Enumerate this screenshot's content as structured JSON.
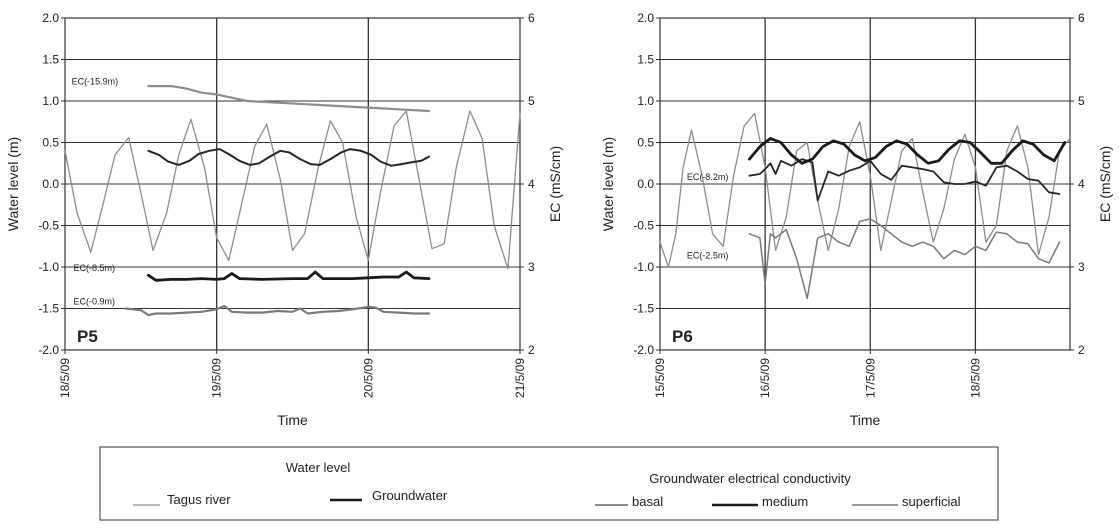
{
  "chart_data": [
    {
      "type": "line",
      "panel_label": "P5",
      "xlabel": "Time",
      "ylabel": "Water level (m)",
      "y2label": "EC (mS/cm)",
      "xlim": [
        0,
        3
      ],
      "ylim": [
        -2.0,
        2.0
      ],
      "y2lim": [
        2,
        6
      ],
      "grid": true,
      "x_ticks": [
        {
          "pos": 0,
          "label": "18/5/09"
        },
        {
          "pos": 1,
          "label": "19/5/09"
        },
        {
          "pos": 2,
          "label": "20/5/09"
        },
        {
          "pos": 3,
          "label": "21/5/09"
        }
      ],
      "y_ticks": [
        "2.0",
        "1.5",
        "1.0",
        "0.5",
        "0.0",
        "-0.5",
        "-1.0",
        "-1.5",
        "-2.0"
      ],
      "y2_ticks": [
        "6",
        "5",
        "4",
        "3",
        "2"
      ],
      "annotations": [
        {
          "text": "EC(-15.9m)",
          "x": 0.35,
          "y": 1.2
        },
        {
          "text": "EC(-8.5m)",
          "x": 0.33,
          "y": -1.05
        },
        {
          "text": "EC(-0.9m)",
          "x": 0.33,
          "y": -1.45
        }
      ],
      "series": [
        {
          "name": "Tagus river",
          "axis": "left",
          "color": "#8c8c8c",
          "width": 1.3,
          "x": [
            0.0,
            0.08,
            0.17,
            0.25,
            0.33,
            0.42,
            0.5,
            0.58,
            0.67,
            0.75,
            0.83,
            0.92,
            1.0,
            1.08,
            1.17,
            1.25,
            1.33,
            1.42,
            1.5,
            1.58,
            1.67,
            1.75,
            1.83,
            1.92,
            2.0,
            2.08,
            2.17,
            2.25,
            2.33,
            2.42,
            2.5,
            2.58,
            2.67,
            2.75,
            2.83,
            2.92,
            3.0
          ],
          "y": [
            0.4,
            -0.35,
            -0.82,
            -0.25,
            0.35,
            0.56,
            -0.1,
            -0.8,
            -0.35,
            0.35,
            0.78,
            0.2,
            -0.65,
            -0.92,
            -0.2,
            0.45,
            0.72,
            0.05,
            -0.8,
            -0.6,
            0.2,
            0.76,
            0.5,
            -0.4,
            -0.92,
            -0.1,
            0.7,
            0.88,
            0.1,
            -0.78,
            -0.72,
            0.2,
            0.88,
            0.55,
            -0.5,
            -1.02,
            0.85
          ]
        },
        {
          "name": "basal",
          "axis": "right",
          "color": "#8c8c8c",
          "width": 2.2,
          "x": [
            0.55,
            0.7,
            0.8,
            0.9,
            1.0,
            1.1,
            1.2,
            1.4,
            1.6,
            1.8,
            2.0,
            2.2,
            2.4
          ],
          "y2": [
            5.18,
            5.18,
            5.15,
            5.1,
            5.08,
            5.04,
            5.0,
            4.98,
            4.96,
            4.94,
            4.92,
            4.9,
            4.88
          ]
        },
        {
          "name": "Groundwater",
          "axis": "left",
          "color": "#262626",
          "width": 2.0,
          "x": [
            0.55,
            0.62,
            0.68,
            0.75,
            0.82,
            0.88,
            0.95,
            1.02,
            1.08,
            1.15,
            1.22,
            1.28,
            1.35,
            1.42,
            1.48,
            1.55,
            1.62,
            1.68,
            1.75,
            1.82,
            1.88,
            1.95,
            2.02,
            2.08,
            2.15,
            2.22,
            2.28,
            2.35,
            2.4
          ],
          "y": [
            0.4,
            0.35,
            0.27,
            0.23,
            0.28,
            0.36,
            0.4,
            0.42,
            0.36,
            0.28,
            0.23,
            0.25,
            0.33,
            0.4,
            0.38,
            0.3,
            0.24,
            0.23,
            0.3,
            0.38,
            0.42,
            0.4,
            0.35,
            0.27,
            0.22,
            0.24,
            0.26,
            0.28,
            0.33
          ]
        },
        {
          "name": "medium",
          "axis": "right",
          "color": "#1a1a1a",
          "width": 2.8,
          "x": [
            0.55,
            0.6,
            0.7,
            0.8,
            0.9,
            1.0,
            1.05,
            1.1,
            1.15,
            1.3,
            1.5,
            1.6,
            1.65,
            1.7,
            1.9,
            2.0,
            2.1,
            2.2,
            2.25,
            2.3,
            2.4
          ],
          "y2": [
            2.9,
            2.84,
            2.85,
            2.85,
            2.86,
            2.85,
            2.86,
            2.92,
            2.86,
            2.85,
            2.86,
            2.86,
            2.94,
            2.86,
            2.86,
            2.87,
            2.88,
            2.88,
            2.94,
            2.87,
            2.86
          ]
        },
        {
          "name": "superficial",
          "axis": "right",
          "color": "#7a7a7a",
          "width": 2.2,
          "x": [
            0.4,
            0.5,
            0.55,
            0.6,
            0.7,
            0.8,
            0.9,
            1.0,
            1.05,
            1.1,
            1.2,
            1.3,
            1.4,
            1.5,
            1.55,
            1.6,
            1.7,
            1.8,
            1.9,
            2.0,
            2.05,
            2.1,
            2.2,
            2.3,
            2.4
          ],
          "y2": [
            2.5,
            2.48,
            2.42,
            2.44,
            2.44,
            2.45,
            2.46,
            2.49,
            2.53,
            2.46,
            2.45,
            2.45,
            2.47,
            2.46,
            2.5,
            2.44,
            2.46,
            2.47,
            2.49,
            2.52,
            2.51,
            2.46,
            2.45,
            2.44,
            2.44
          ]
        }
      ]
    },
    {
      "type": "line",
      "panel_label": "P6",
      "xlabel": "Time",
      "ylabel": "Water level (m)",
      "y2label": "EC (mS/cm)",
      "xlim": [
        0,
        3.9
      ],
      "ylim": [
        -2.0,
        2.0
      ],
      "y2lim": [
        2,
        6
      ],
      "grid": true,
      "x_ticks": [
        {
          "pos": 0,
          "label": "15/5/09"
        },
        {
          "pos": 1,
          "label": "16/5/09"
        },
        {
          "pos": 2,
          "label": "17/5/09"
        },
        {
          "pos": 3,
          "label": "18/5/09"
        }
      ],
      "y_ticks": [
        "2.0",
        "1.5",
        "1.0",
        "0.5",
        "0.0",
        "-0.5",
        "-1.0",
        "-1.5",
        "-2.0"
      ],
      "y2_ticks": [
        "6",
        "5",
        "4",
        "3",
        "2"
      ],
      "annotations": [
        {
          "text": "EC(-8.2m)",
          "x": 0.65,
          "y": 0.05
        },
        {
          "text": "EC(-2.5m)",
          "x": 0.65,
          "y": -0.9
        }
      ],
      "series": [
        {
          "name": "Tagus river",
          "axis": "left",
          "color": "#8c8c8c",
          "width": 1.3,
          "x": [
            0.0,
            0.08,
            0.15,
            0.22,
            0.3,
            0.4,
            0.5,
            0.6,
            0.7,
            0.8,
            0.9,
            1.0,
            1.1,
            1.2,
            1.3,
            1.4,
            1.5,
            1.6,
            1.7,
            1.8,
            1.9,
            2.0,
            2.1,
            2.2,
            2.3,
            2.4,
            2.5,
            2.6,
            2.7,
            2.8,
            2.9,
            3.0,
            3.1,
            3.2,
            3.3,
            3.4,
            3.5,
            3.6,
            3.7,
            3.8,
            3.9
          ],
          "y": [
            -0.7,
            -1.0,
            -0.6,
            0.2,
            0.65,
            0.1,
            -0.6,
            -0.75,
            0.1,
            0.7,
            0.85,
            0.2,
            -0.8,
            -0.4,
            0.4,
            0.5,
            -0.2,
            -0.8,
            -0.3,
            0.45,
            0.75,
            0.1,
            -0.8,
            -0.2,
            0.4,
            0.55,
            -0.1,
            -0.7,
            -0.3,
            0.3,
            0.6,
            0.2,
            -0.7,
            -0.5,
            0.4,
            0.7,
            0.2,
            -0.85,
            -0.4,
            0.4,
            0.55
          ]
        },
        {
          "name": "medium",
          "axis": "right",
          "color": "#262626",
          "width": 1.8,
          "x": [
            0.85,
            0.95,
            1.0,
            1.05,
            1.1,
            1.15,
            1.25,
            1.35,
            1.45,
            1.5,
            1.6,
            1.7,
            1.8,
            1.9,
            2.0,
            2.1,
            2.2,
            2.3,
            2.4,
            2.5,
            2.6,
            2.7,
            2.8,
            2.9,
            3.0,
            3.1,
            3.2,
            3.3,
            3.4,
            3.5,
            3.6,
            3.7,
            3.8
          ],
          "y2": [
            4.1,
            4.12,
            4.18,
            4.25,
            4.12,
            4.28,
            4.22,
            4.3,
            4.26,
            3.8,
            4.15,
            4.1,
            4.16,
            4.2,
            4.28,
            4.12,
            4.05,
            4.22,
            4.2,
            4.18,
            4.15,
            4.02,
            4.0,
            4.0,
            4.03,
            3.98,
            4.2,
            4.22,
            4.15,
            4.06,
            4.04,
            3.9,
            3.88
          ]
        },
        {
          "name": "Groundwater",
          "axis": "left",
          "color": "#1a1a1a",
          "width": 2.8,
          "x": [
            0.85,
            0.95,
            1.05,
            1.15,
            1.25,
            1.35,
            1.45,
            1.55,
            1.65,
            1.75,
            1.85,
            1.95,
            2.05,
            2.15,
            2.25,
            2.35,
            2.45,
            2.55,
            2.65,
            2.75,
            2.85,
            2.95,
            3.05,
            3.15,
            3.25,
            3.35,
            3.45,
            3.55,
            3.65,
            3.75,
            3.85
          ],
          "y": [
            0.3,
            0.45,
            0.55,
            0.5,
            0.35,
            0.25,
            0.3,
            0.45,
            0.52,
            0.48,
            0.35,
            0.28,
            0.32,
            0.45,
            0.52,
            0.48,
            0.35,
            0.25,
            0.28,
            0.42,
            0.52,
            0.5,
            0.38,
            0.25,
            0.25,
            0.4,
            0.52,
            0.48,
            0.35,
            0.28,
            0.5
          ]
        },
        {
          "name": "superficial",
          "axis": "right",
          "color": "#7a7a7a",
          "width": 1.5,
          "x": [
            0.85,
            0.95,
            1.0,
            1.05,
            1.1,
            1.2,
            1.3,
            1.4,
            1.5,
            1.6,
            1.7,
            1.8,
            1.9,
            2.0,
            2.1,
            2.2,
            2.3,
            2.4,
            2.5,
            2.6,
            2.7,
            2.8,
            2.9,
            3.0,
            3.1,
            3.2,
            3.3,
            3.4,
            3.5,
            3.6,
            3.7,
            3.8
          ],
          "y2": [
            3.4,
            3.35,
            2.8,
            3.4,
            3.35,
            3.45,
            3.1,
            2.62,
            3.35,
            3.4,
            3.3,
            3.25,
            3.55,
            3.58,
            3.5,
            3.4,
            3.3,
            3.25,
            3.3,
            3.25,
            3.1,
            3.2,
            3.15,
            3.25,
            3.2,
            3.42,
            3.4,
            3.3,
            3.28,
            3.1,
            3.05,
            3.3
          ]
        }
      ]
    }
  ],
  "legend": {
    "water_level_title": "Water level",
    "conductivity_title": "Groundwater electrical conductivity",
    "items": [
      {
        "label": "Tagus river",
        "color": "#8c8c8c",
        "width": 1.3
      },
      {
        "label": "Groundwater",
        "color": "#1a1a1a",
        "width": 2.5
      },
      {
        "label": "basal",
        "color": "#8c8c8c",
        "width": 2.0
      },
      {
        "label": "medium",
        "color": "#1a1a1a",
        "width": 2.5
      },
      {
        "label": "superficial",
        "color": "#7a7a7a",
        "width": 1.5
      }
    ]
  }
}
